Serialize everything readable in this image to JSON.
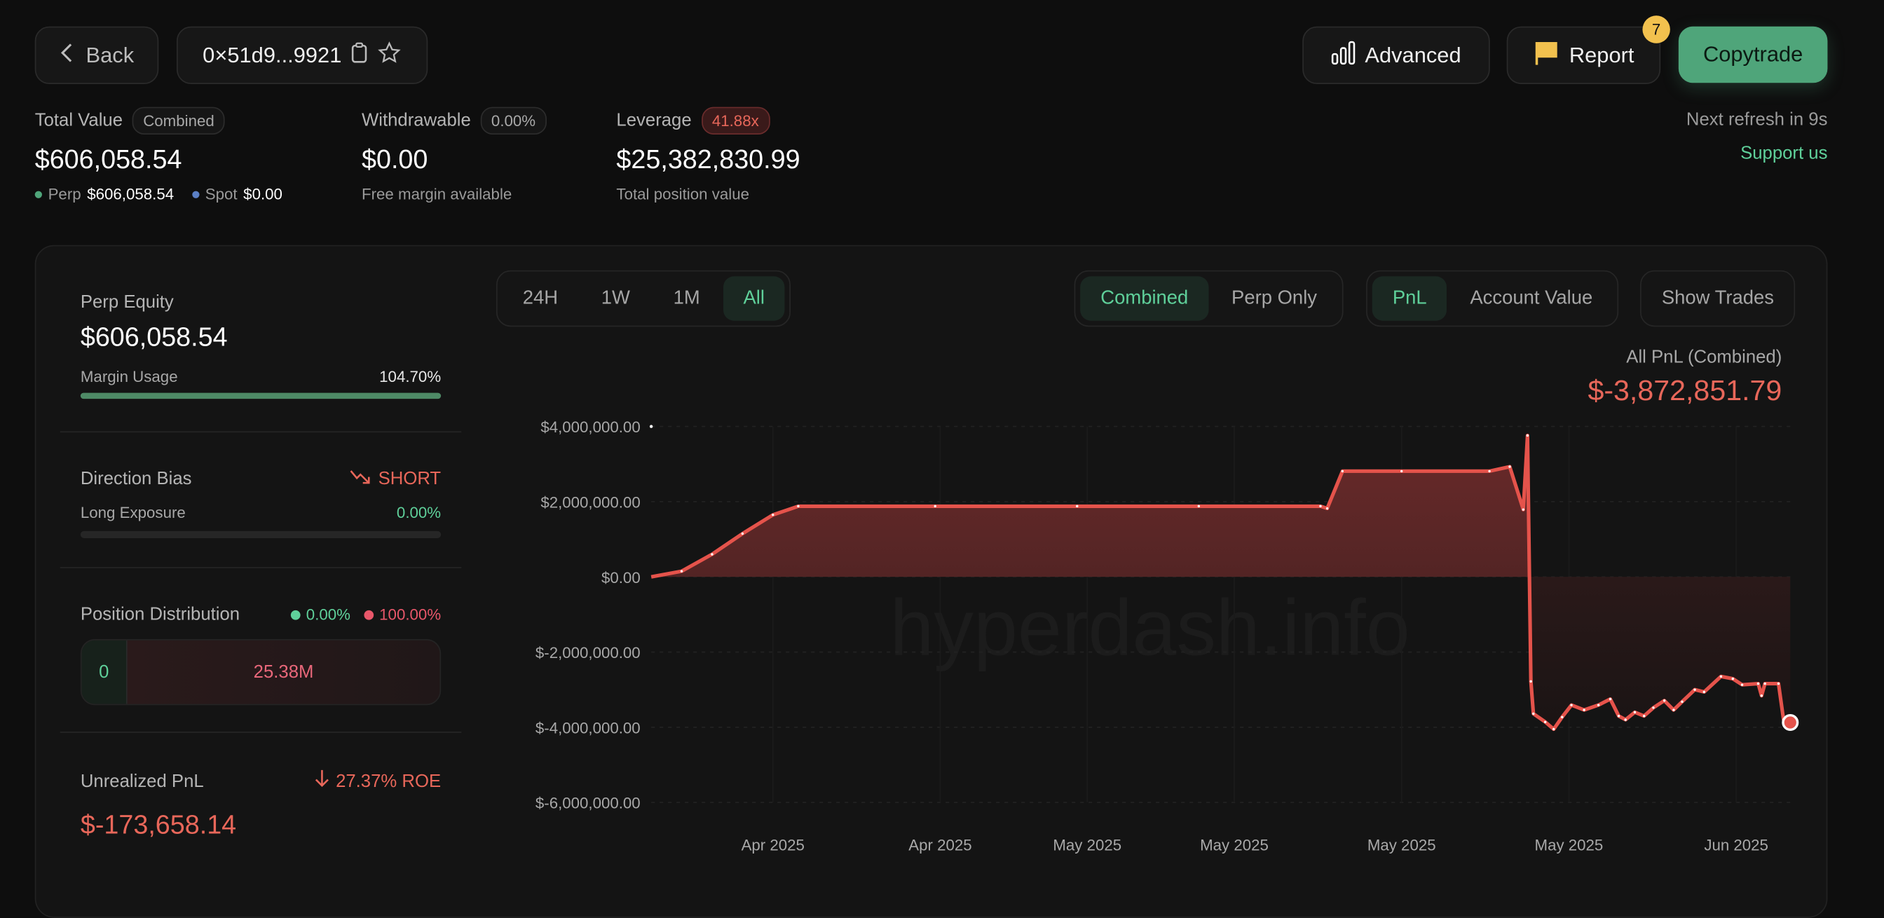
{
  "header": {
    "back_label": "Back",
    "address": "0×51d9...9921",
    "advanced_label": "Advanced",
    "report_label": "Report",
    "report_badge": "7",
    "copytrade_label": "Copytrade",
    "refresh_text": "Next refresh in 9s",
    "support_label": "Support us"
  },
  "stats": {
    "total_value": {
      "label": "Total Value",
      "pill": "Combined",
      "value": "$606,058.54",
      "perp_label": "Perp",
      "perp_value": "$606,058.54",
      "spot_label": "Spot",
      "spot_value": "$0.00"
    },
    "withdrawable": {
      "label": "Withdrawable",
      "pill": "0.00%",
      "value": "$0.00",
      "sub": "Free margin available"
    },
    "leverage": {
      "label": "Leverage",
      "pill": "41.88x",
      "value": "$25,382,830.99",
      "sub": "Total position value"
    }
  },
  "panel": {
    "perp_equity_label": "Perp Equity",
    "perp_equity_value": "$606,058.54",
    "margin_usage_label": "Margin Usage",
    "margin_usage_value": "104.70%",
    "margin_usage_fraction": 1.0,
    "direction_bias_label": "Direction Bias",
    "direction_bias_value": "SHORT",
    "long_exposure_label": "Long Exposure",
    "long_exposure_value": "0.00%",
    "long_exposure_fraction": 0,
    "position_distribution_label": "Position Distribution",
    "long_pct": "0.00%",
    "short_pct": "100.00%",
    "long_amount": "0",
    "short_amount": "25.38M",
    "unrealized_label": "Unrealized PnL",
    "roe": "27.37% ROE",
    "unrealized_value": "$-173,658.14"
  },
  "chart_controls": {
    "ranges": [
      "24H",
      "1W",
      "1M",
      "All"
    ],
    "active_range": "All",
    "modes": [
      "Combined",
      "Perp Only"
    ],
    "active_mode": "Combined",
    "metrics": [
      "PnL",
      "Account Value"
    ],
    "active_metric": "PnL",
    "show_trades_label": "Show Trades"
  },
  "summary": {
    "label": "All PnL (Combined)",
    "value": "$-3,872,851.79"
  },
  "watermark": "hyperdash.info",
  "colors": {
    "accent_green": "#4fa57a",
    "negative": "#e8675a",
    "line": "#e5534b",
    "badge": "#f2c14e"
  },
  "chart_data": {
    "type": "area",
    "ylim": [
      -6000000,
      4000000
    ],
    "xlim": [
      "2025-04-08T00:00",
      "2025-06-03T04:00"
    ],
    "yticks": [
      {
        "v": 4000000,
        "label": "$4,000,000.00"
      },
      {
        "v": 2000000,
        "label": "$2,000,000.00"
      },
      {
        "v": 0,
        "label": "$0.00"
      },
      {
        "v": -2000000,
        "label": "$-2,000,000.00"
      },
      {
        "v": -4000000,
        "label": "$-4,000,000.00"
      },
      {
        "v": -6000000,
        "label": "$-6,000,000.00"
      }
    ],
    "xticks": [
      {
        "x": "2025-04-14T00:00",
        "label": "Apr 2025"
      },
      {
        "x": "2025-04-22T06:00",
        "label": "Apr 2025"
      },
      {
        "x": "2025-04-29T12:00",
        "label": "May 2025"
      },
      {
        "x": "2025-05-06T18:00",
        "label": "May 2025"
      },
      {
        "x": "2025-05-15T00:00",
        "label": "May 2025"
      },
      {
        "x": "2025-05-23T06:00",
        "label": "May 2025"
      },
      {
        "x": "2025-05-31T12:00",
        "label": "Jun 2025"
      }
    ],
    "grid": true,
    "points": [
      [
        "2025-04-08T00:00",
        0
      ],
      [
        "2025-04-09T12:00",
        150000
      ],
      [
        "2025-04-11T00:00",
        600000
      ],
      [
        "2025-04-12T12:00",
        1150000
      ],
      [
        "2025-04-14T00:00",
        1650000
      ],
      [
        "2025-04-15T06:00",
        1880000
      ],
      [
        "2025-04-22T00:00",
        1880000
      ],
      [
        "2025-04-29T00:00",
        1880000
      ],
      [
        "2025-05-05T00:00",
        1880000
      ],
      [
        "2025-05-11T00:00",
        1880000
      ],
      [
        "2025-05-11T08:00",
        1820000
      ],
      [
        "2025-05-12T02:00",
        2810000
      ],
      [
        "2025-05-15T00:00",
        2810000
      ],
      [
        "2025-05-19T08:00",
        2810000
      ],
      [
        "2025-05-20T08:00",
        2930000
      ],
      [
        "2025-05-21T00:00",
        1790000
      ],
      [
        "2025-05-21T05:00",
        3760000
      ],
      [
        "2025-05-21T09:00",
        -2780000
      ],
      [
        "2025-05-21T12:00",
        -3640000
      ],
      [
        "2025-05-22T02:00",
        -3860000
      ],
      [
        "2025-05-22T12:00",
        -4050000
      ],
      [
        "2025-05-22T22:00",
        -3730000
      ],
      [
        "2025-05-23T09:00",
        -3410000
      ],
      [
        "2025-05-24T00:00",
        -3540000
      ],
      [
        "2025-05-24T17:00",
        -3410000
      ],
      [
        "2025-05-25T07:00",
        -3250000
      ],
      [
        "2025-05-25T17:00",
        -3700000
      ],
      [
        "2025-05-26T01:00",
        -3800000
      ],
      [
        "2025-05-26T12:00",
        -3600000
      ],
      [
        "2025-05-26T23:00",
        -3700000
      ],
      [
        "2025-05-27T10:00",
        -3480000
      ],
      [
        "2025-05-27T23:00",
        -3290000
      ],
      [
        "2025-05-28T10:00",
        -3540000
      ],
      [
        "2025-05-28T20:00",
        -3320000
      ],
      [
        "2025-05-29T11:00",
        -3000000
      ],
      [
        "2025-05-29T22:00",
        -3060000
      ],
      [
        "2025-05-30T18:00",
        -2650000
      ],
      [
        "2025-05-31T08:00",
        -2710000
      ],
      [
        "2025-05-31T19:00",
        -2870000
      ],
      [
        "2025-06-01T14:00",
        -2840000
      ],
      [
        "2025-06-01T18:00",
        -3160000
      ],
      [
        "2025-06-01T22:00",
        -2840000
      ],
      [
        "2025-06-02T14:00",
        -2840000
      ],
      [
        "2025-06-02T20:00",
        -3800000
      ],
      [
        "2025-06-03T04:00",
        -3872851.79
      ]
    ]
  }
}
